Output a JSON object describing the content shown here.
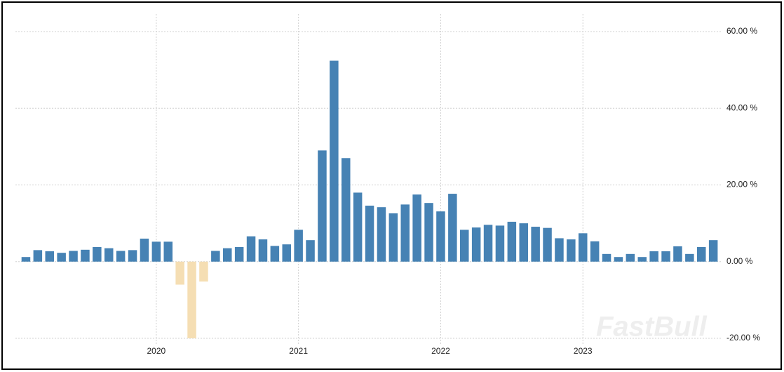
{
  "chart_data": {
    "type": "bar",
    "categories": [
      null,
      null,
      null,
      null,
      null,
      null,
      null,
      null,
      null,
      null,
      null,
      "2020",
      null,
      null,
      null,
      null,
      null,
      null,
      null,
      null,
      null,
      null,
      null,
      "2021",
      null,
      null,
      null,
      null,
      null,
      null,
      null,
      null,
      null,
      null,
      null,
      "2022",
      null,
      null,
      null,
      null,
      null,
      null,
      null,
      null,
      null,
      null,
      null,
      "2023",
      null,
      null,
      null,
      null,
      null,
      null,
      null,
      null,
      null,
      null,
      null
    ],
    "values": [
      1.2,
      3.0,
      2.7,
      2.3,
      2.8,
      3.1,
      3.8,
      3.5,
      2.8,
      3.0,
      6.0,
      5.2,
      5.2,
      -6.0,
      -20.0,
      -5.2,
      2.8,
      3.5,
      3.8,
      6.6,
      5.8,
      4.1,
      4.5,
      8.3,
      5.6,
      29.0,
      52.4,
      27.0,
      18.0,
      14.6,
      14.2,
      12.6,
      14.9,
      17.5,
      15.3,
      13.1,
      17.7,
      8.3,
      8.9,
      9.6,
      9.4,
      10.4,
      10.0,
      9.1,
      8.8,
      6.1,
      5.8,
      7.4,
      5.3,
      2.0,
      1.2,
      2.0,
      1.2,
      2.7,
      2.7,
      4.0,
      2.0,
      3.8,
      5.6
    ],
    "color": "#4682b4",
    "negative_color": "#f5deb3",
    "ylim": [
      -20,
      60
    ],
    "yticks": [
      {
        "value": -20,
        "label": "-20.00 %"
      },
      {
        "value": 0,
        "label": "0.00 %"
      },
      {
        "value": 20,
        "label": "20.00 %"
      },
      {
        "value": 40,
        "label": "40.00 %"
      },
      {
        "value": 60,
        "label": "60.00 %"
      }
    ],
    "grid": true,
    "watermark": "FastBull"
  }
}
